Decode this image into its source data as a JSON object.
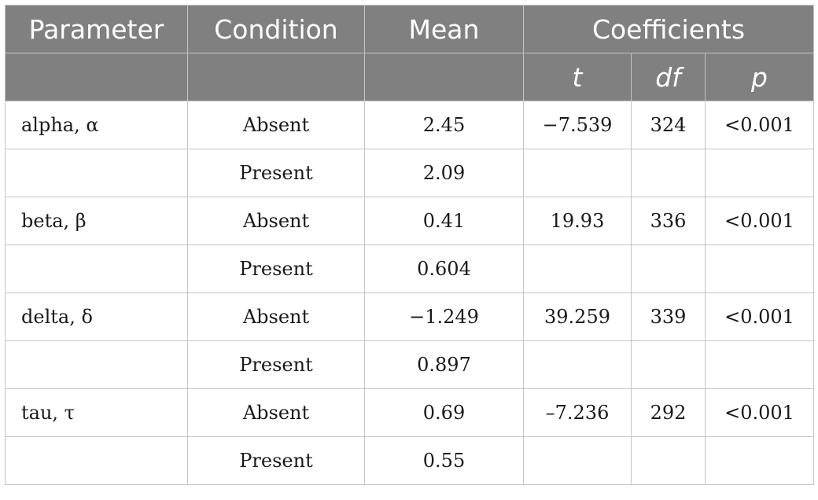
{
  "header": {
    "parameter": "Parameter",
    "condition": "Condition",
    "mean": "Mean",
    "coefficients": "Coefficients",
    "t": "t",
    "df": "df",
    "p": "p"
  },
  "rows": [
    {
      "parameter": "alpha, α",
      "condition": "Absent",
      "mean": "2.45",
      "t": "−7.539",
      "df": "324",
      "p": "<0.001"
    },
    {
      "parameter": "",
      "condition": "Present",
      "mean": "2.09",
      "t": "",
      "df": "",
      "p": ""
    },
    {
      "parameter": "beta, β",
      "condition": "Absent",
      "mean": "0.41",
      "t": "19.93",
      "df": "336",
      "p": "<0.001"
    },
    {
      "parameter": "",
      "condition": "Present",
      "mean": "0.604",
      "t": "",
      "df": "",
      "p": ""
    },
    {
      "parameter": "delta, δ",
      "condition": "Absent",
      "mean": "−1.249",
      "t": "39.259",
      "df": "339",
      "p": "<0.001"
    },
    {
      "parameter": "",
      "condition": "Present",
      "mean": "0.897",
      "t": "",
      "df": "",
      "p": ""
    },
    {
      "parameter": "tau, τ",
      "condition": "Absent",
      "mean": "0.69",
      "t": "–7.236",
      "df": "292",
      "p": "<0.001"
    },
    {
      "parameter": "",
      "condition": "Present",
      "mean": "0.55",
      "t": "",
      "df": "",
      "p": ""
    }
  ],
  "colors": {
    "header_bg": "#808080",
    "header_text": "#ffffff",
    "border": "#c4c4c4"
  }
}
